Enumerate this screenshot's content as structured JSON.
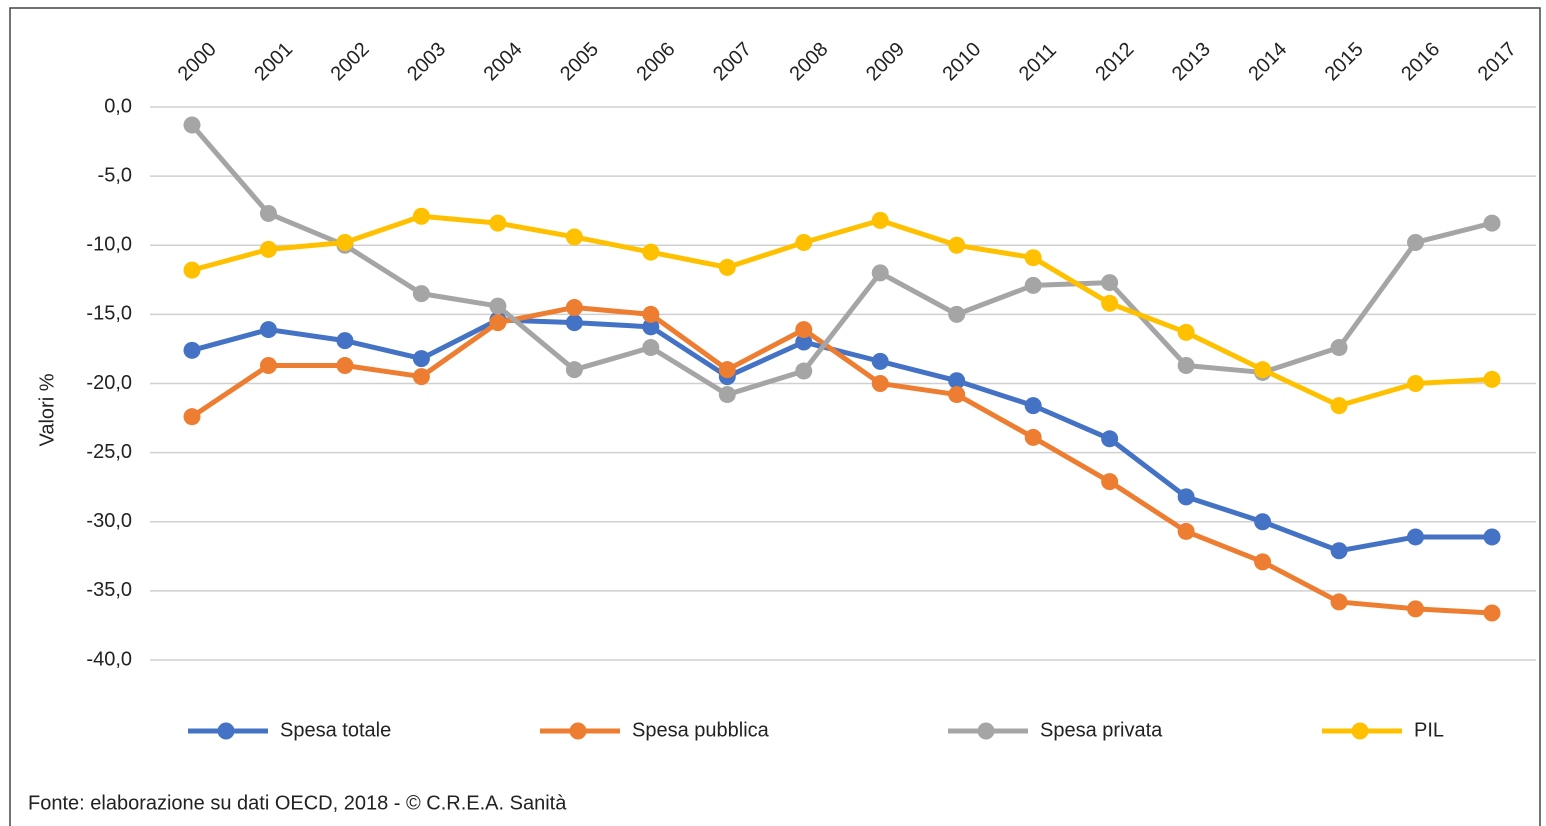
{
  "chart_data": {
    "type": "line",
    "y_axis_label": "Valori %",
    "source": "Fonte: elaborazione su dati OECD, 2018 - © C.R.E.A. Sanità",
    "categories": [
      "2000",
      "2001",
      "2002",
      "2003",
      "2004",
      "2005",
      "2006",
      "2007",
      "2008",
      "2009",
      "2010",
      "2011",
      "2012",
      "2013",
      "2014",
      "2015",
      "2016",
      "2017"
    ],
    "series": [
      {
        "name": "Spesa totale",
        "color": "#4472c4",
        "values": [
          -17.6,
          -16.1,
          -16.9,
          -18.2,
          -15.4,
          -15.6,
          -15.9,
          -19.5,
          -17.0,
          -18.4,
          -19.8,
          -21.6,
          -24.0,
          -28.2,
          -30.0,
          -32.1,
          -31.1,
          -31.1
        ]
      },
      {
        "name": "Spesa pubblica",
        "color": "#ed7d31",
        "values": [
          -22.4,
          -18.7,
          -18.7,
          -19.5,
          -15.6,
          -14.5,
          -15.0,
          -19.0,
          -16.1,
          -20.0,
          -20.8,
          -23.9,
          -27.1,
          -30.7,
          -32.9,
          -35.8,
          -36.3,
          -36.6
        ]
      },
      {
        "name": "Spesa privata",
        "color": "#a5a5a5",
        "values": [
          -1.3,
          -7.7,
          -10.0,
          -13.5,
          -14.4,
          -19.0,
          -17.4,
          -20.8,
          -19.1,
          -12.0,
          -15.0,
          -12.9,
          -12.7,
          -18.7,
          -19.2,
          -17.4,
          -9.8,
          -8.4
        ]
      },
      {
        "name": "PIL",
        "color": "#ffc000",
        "values": [
          -11.8,
          -10.3,
          -9.8,
          -7.9,
          -8.4,
          -9.4,
          -10.5,
          -11.6,
          -9.8,
          -8.2,
          -10.0,
          -10.9,
          -14.2,
          -16.3,
          -19.0,
          -21.6,
          -20.0,
          -19.7
        ]
      }
    ],
    "ylim": [
      -40,
      0
    ],
    "yticks": [
      {
        "value": 0,
        "label": "0,0"
      },
      {
        "value": -5,
        "label": "-5,0"
      },
      {
        "value": -10,
        "label": "-10,0"
      },
      {
        "value": -15,
        "label": "-15,0"
      },
      {
        "value": -20,
        "label": "-20,0"
      },
      {
        "value": -25,
        "label": "-25,0"
      },
      {
        "value": -30,
        "label": "-30,0"
      },
      {
        "value": -35,
        "label": "-35,0"
      },
      {
        "value": -40,
        "label": "-40,0"
      }
    ],
    "grid": true,
    "legend": "bottom"
  }
}
